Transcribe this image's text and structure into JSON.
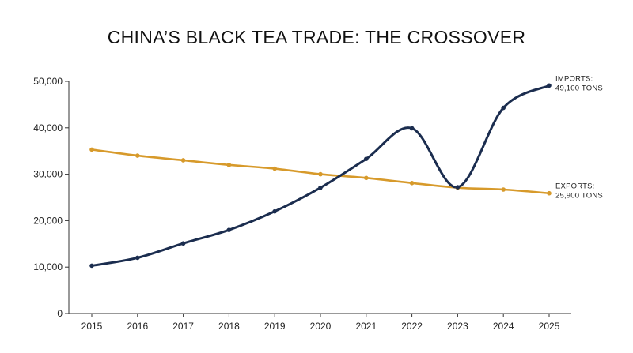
{
  "chart_data": {
    "type": "line",
    "title": "CHINA’S BLACK TEA TRADE: THE CROSSOVER",
    "xlabel": "",
    "ylabel": "",
    "x": [
      "2015",
      "2016",
      "2017",
      "2018",
      "2019",
      "2020",
      "2021",
      "2022",
      "2023",
      "2024",
      "2025"
    ],
    "ylim": [
      0,
      50000
    ],
    "yticks": [
      "0",
      "10,000",
      "20,000",
      "30,000",
      "40,000",
      "50,000"
    ],
    "grid": false,
    "series": [
      {
        "key": "imports",
        "color": "#1b2d4f",
        "values": [
          10300,
          12000,
          15100,
          18000,
          22000,
          27100,
          33300,
          39900,
          27200,
          44300,
          49100
        ],
        "annotation": [
          "IMPORTS:",
          "49,100 TONS"
        ]
      },
      {
        "key": "exports",
        "color": "#d79a2b",
        "values": [
          35300,
          34000,
          33000,
          32000,
          31200,
          30000,
          29200,
          28100,
          27100,
          26700,
          25900
        ],
        "annotation": [
          "EXPORTS:",
          "25,900 TONS"
        ]
      }
    ]
  }
}
